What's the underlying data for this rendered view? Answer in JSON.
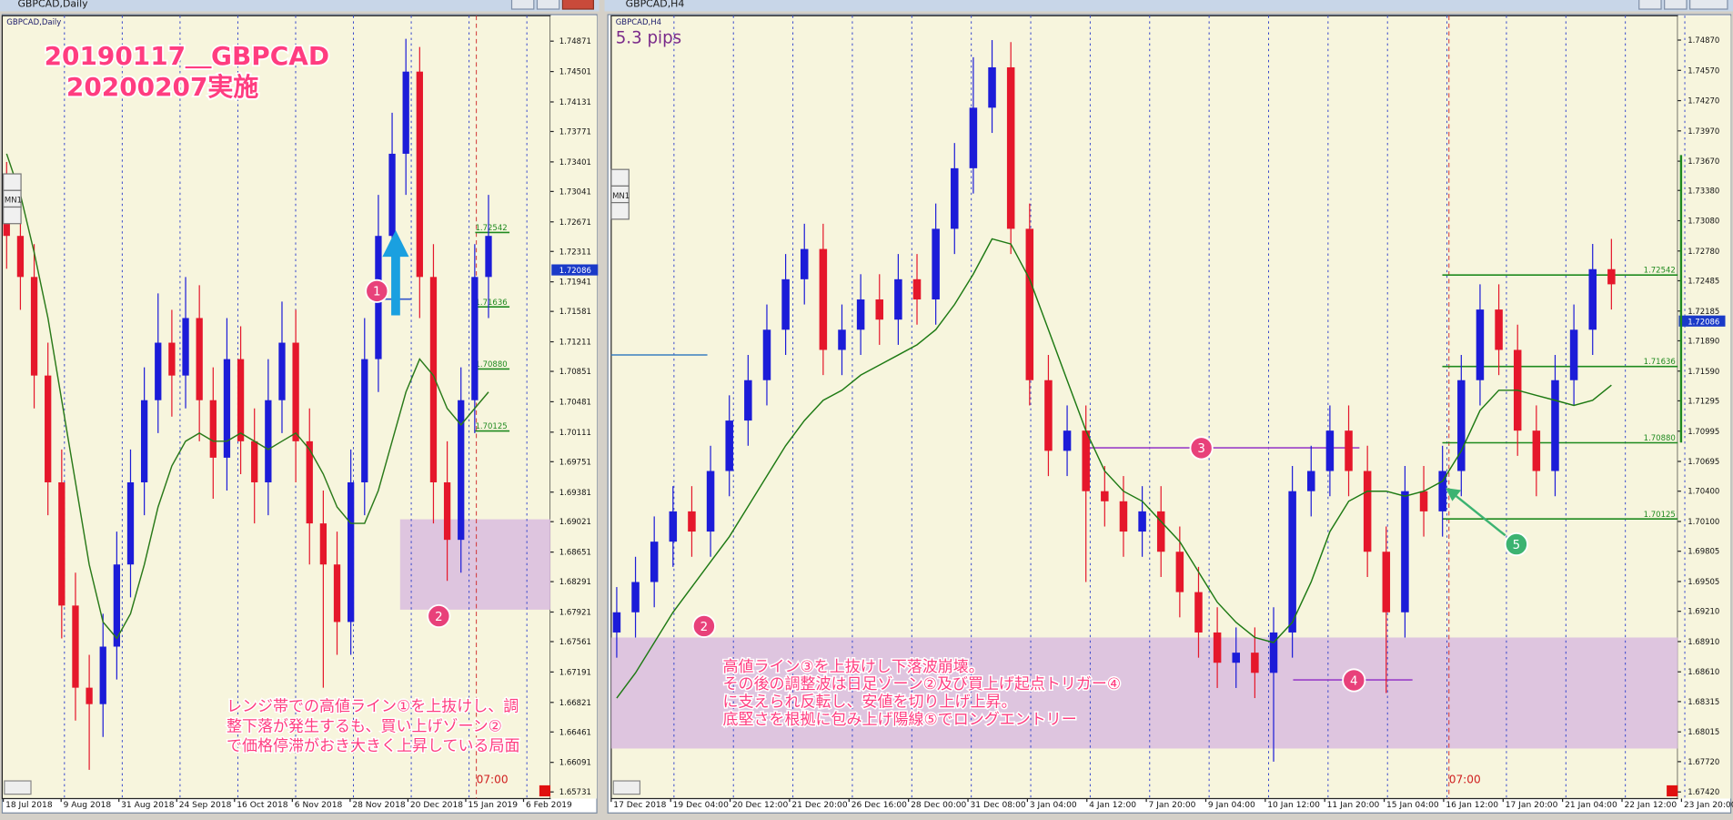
{
  "chart_data": [
    {
      "type": "candlestick",
      "window_title": "GBPCAD,Daily",
      "symbol_label": "GBPCAD,Daily",
      "title_lines": [
        "20190117＿GBPCAD",
        "20200207実施"
      ],
      "notes": [
        "レンジ帯での高値ライン①を上抜けし、調",
        "整下落が発生するも、買い上げゾーン②",
        "で価格停滞がおき大きく上昇している局面"
      ],
      "markers": [
        "1",
        "2"
      ],
      "period_button": "MN1",
      "time_label": "07:00",
      "ylim": [
        1.6565,
        1.7518
      ],
      "yticks": [
        1.74871,
        1.74501,
        1.74131,
        1.73771,
        1.73401,
        1.73041,
        1.72671,
        1.72311,
        1.71941,
        1.71581,
        1.71211,
        1.70851,
        1.70481,
        1.70111,
        1.69751,
        1.69381,
        1.69021,
        1.68651,
        1.68291,
        1.67921,
        1.67561,
        1.67191,
        1.66821,
        1.66461,
        1.66091,
        1.65731
      ],
      "xtick_labels": [
        "18 Jul 2018",
        "9 Aug 2018",
        "31 Aug 2018",
        "24 Sep 2018",
        "16 Oct 2018",
        "6 Nov 2018",
        "28 Nov 2018",
        "20 Dec 2018",
        "15 Jan 2019",
        "6 Feb 2019"
      ],
      "ohlc": {
        "open": [
          1.73,
          1.725,
          1.72,
          1.708,
          1.695,
          1.68,
          1.67,
          1.668,
          1.675,
          1.685,
          1.695,
          1.705,
          1.712,
          1.708,
          1.715,
          1.705,
          1.698,
          1.71,
          1.7,
          1.695,
          1.705,
          1.712,
          1.7,
          1.69,
          1.685,
          1.678,
          1.695,
          1.71,
          1.725,
          1.735,
          1.745,
          1.72,
          1.695,
          1.688,
          1.705,
          1.72
        ],
        "high": [
          1.734,
          1.729,
          1.724,
          1.712,
          1.699,
          1.684,
          1.674,
          1.679,
          1.689,
          1.699,
          1.709,
          1.718,
          1.716,
          1.72,
          1.719,
          1.709,
          1.715,
          1.714,
          1.704,
          1.71,
          1.717,
          1.716,
          1.704,
          1.694,
          1.689,
          1.699,
          1.715,
          1.73,
          1.74,
          1.749,
          1.748,
          1.724,
          1.7,
          1.709,
          1.724,
          1.73
        ],
        "low": [
          1.721,
          1.716,
          1.704,
          1.691,
          1.676,
          1.666,
          1.66,
          1.664,
          1.671,
          1.681,
          1.691,
          1.701,
          1.703,
          1.704,
          1.7,
          1.693,
          1.694,
          1.696,
          1.69,
          1.691,
          1.701,
          1.695,
          1.685,
          1.67,
          1.674,
          1.674,
          1.691,
          1.706,
          1.72,
          1.73,
          1.715,
          1.69,
          1.683,
          1.684,
          1.701,
          1.715
        ],
        "close": [
          1.725,
          1.72,
          1.708,
          1.695,
          1.68,
          1.67,
          1.668,
          1.675,
          1.685,
          1.695,
          1.705,
          1.712,
          1.708,
          1.715,
          1.705,
          1.698,
          1.71,
          1.7,
          1.695,
          1.705,
          1.712,
          1.7,
          1.69,
          1.685,
          1.678,
          1.695,
          1.71,
          1.725,
          1.735,
          1.745,
          1.72,
          1.695,
          1.688,
          1.705,
          1.72,
          1.725
        ]
      },
      "colors": {
        "up": "#1c1cd8",
        "down": "#e5172b"
      },
      "ma": {
        "color": "#2a7a1a",
        "values": [
          1.735,
          1.73,
          1.723,
          1.715,
          1.705,
          1.695,
          1.685,
          1.678,
          1.676,
          1.679,
          1.685,
          1.692,
          1.697,
          1.7,
          1.701,
          1.7,
          1.7,
          1.701,
          1.7,
          1.699,
          1.7,
          1.701,
          1.699,
          1.696,
          1.692,
          1.69,
          1.69,
          1.694,
          1.7,
          1.706,
          1.71,
          1.708,
          1.704,
          1.702,
          1.704,
          1.706
        ]
      },
      "last_price": 1.72086,
      "levels": [
        1.72542,
        1.71636,
        {
          "value": 1.7088,
          "label": "1.70880"
        },
        1.70125
      ],
      "level_color": "#1f8a1f",
      "zone": {
        "from": 1.6795,
        "to": 1.6905,
        "color": "#d9bcdf"
      },
      "h_lines": [
        {
          "value": 1.7173,
          "color": "#3355cc"
        }
      ]
    },
    {
      "type": "candlestick",
      "window_title": "GBPCAD,H4",
      "symbol_label": "GBPCAD,H4",
      "pips_label": "5.3 pips",
      "notes": [
        "高値ライン③を上抜けし下落波崩壊。",
        "その後の調整波は日足ゾーン②及び買上げ起点トリガー④",
        "に支えられ反転し、安値を切り上げ上昇。",
        "底堅さを根拠に包み上げ陽線⑤でロングエントリー"
      ],
      "markers": [
        "2",
        "3",
        "4",
        "5"
      ],
      "period_button": "MN1",
      "time_label": "07:00",
      "ylim": [
        1.67354,
        1.75111
      ],
      "yticks": [
        {
          "value": 1.7487,
          "label": "1.74870"
        },
        {
          "value": 1.7457,
          "label": "1.74570"
        },
        {
          "value": 1.7427,
          "label": "1.74270"
        },
        {
          "value": 1.7397,
          "label": "1.73970"
        },
        {
          "value": 1.7367,
          "label": "1.73670"
        },
        {
          "value": 1.7338,
          "label": "1.73380"
        },
        {
          "value": 1.7308,
          "label": "1.73080"
        },
        {
          "value": 1.7278,
          "label": "1.72780"
        },
        1.72485,
        1.72185,
        {
          "value": 1.7189,
          "label": "1.71890"
        },
        {
          "value": 1.7159,
          "label": "1.71590"
        },
        1.71295,
        1.70995,
        1.70695,
        {
          "value": 1.704,
          "label": "1.70400"
        },
        {
          "value": 1.701,
          "label": "1.70100"
        },
        1.69805,
        1.69505,
        {
          "value": 1.6921,
          "label": "1.69210"
        },
        {
          "value": 1.6891,
          "label": "1.68910"
        },
        {
          "value": 1.6861,
          "label": "1.68610"
        },
        1.68315,
        1.68015,
        {
          "value": 1.6772,
          "label": "1.67720"
        },
        {
          "value": 1.6742,
          "label": "1.67420"
        }
      ],
      "xtick_labels": [
        "17 Dec 2018",
        "19 Dec 04:00",
        "20 Dec 12:00",
        "21 Dec 20:00",
        "26 Dec 16:00",
        "28 Dec 00:00",
        "31 Dec 08:00",
        "3 Jan 04:00",
        "4 Jan 12:00",
        "7 Jan 20:00",
        "9 Jan 04:00",
        "10 Jan 12:00",
        "11 Jan 20:00",
        "15 Jan 04:00",
        "16 Jan 12:00",
        "17 Jan 20:00",
        "21 Jan 04:00",
        "22 Jan 12:00",
        "23 Jan 20:00"
      ],
      "ohlc": {
        "open": [
          1.69,
          1.692,
          1.695,
          1.699,
          1.702,
          1.7,
          1.706,
          1.711,
          1.715,
          1.72,
          1.725,
          1.728,
          1.718,
          1.72,
          1.723,
          1.721,
          1.725,
          1.723,
          1.73,
          1.736,
          1.742,
          1.746,
          1.73,
          1.715,
          1.708,
          1.71,
          1.704,
          1.703,
          1.7,
          1.702,
          1.698,
          1.694,
          1.69,
          1.687,
          1.688,
          1.686,
          1.69,
          1.704,
          1.706,
          1.71,
          1.706,
          1.698,
          1.692,
          1.704,
          1.702,
          1.706,
          1.715,
          1.722,
          1.718,
          1.71,
          1.706,
          1.715,
          1.72,
          1.726
        ],
        "high": [
          1.6945,
          1.6975,
          1.7015,
          1.7045,
          1.7045,
          1.7085,
          1.7135,
          1.7175,
          1.7225,
          1.7275,
          1.7305,
          1.7305,
          1.7225,
          1.7255,
          1.7255,
          1.7275,
          1.7275,
          1.7325,
          1.7385,
          1.747,
          1.7487,
          1.7485,
          1.7325,
          1.7175,
          1.7125,
          1.7125,
          1.7065,
          1.7055,
          1.7045,
          1.7045,
          1.7005,
          1.6965,
          1.6925,
          1.6905,
          1.6905,
          1.6925,
          1.7065,
          1.7085,
          1.7125,
          1.7125,
          1.7085,
          1.7005,
          1.7065,
          1.7065,
          1.7085,
          1.7175,
          1.7245,
          1.7245,
          1.7205,
          1.7125,
          1.7175,
          1.7225,
          1.7285,
          1.729
        ],
        "low": [
          1.6875,
          1.6895,
          1.6925,
          1.6965,
          1.6975,
          1.6975,
          1.7035,
          1.7085,
          1.7125,
          1.7175,
          1.7225,
          1.7155,
          1.7155,
          1.7175,
          1.7185,
          1.7185,
          1.7205,
          1.7205,
          1.7275,
          1.7335,
          1.7395,
          1.7275,
          1.7125,
          1.7055,
          1.7055,
          1.695,
          1.7005,
          1.6975,
          1.6975,
          1.6955,
          1.6915,
          1.6875,
          1.6845,
          1.6845,
          1.6835,
          1.6772,
          1.6875,
          1.7015,
          1.7035,
          1.7035,
          1.6955,
          1.684,
          1.6895,
          1.6995,
          1.6995,
          1.7035,
          1.7125,
          1.7155,
          1.7075,
          1.7035,
          1.7035,
          1.7125,
          1.7175,
          1.722
        ],
        "close": [
          1.692,
          1.695,
          1.699,
          1.702,
          1.7,
          1.706,
          1.711,
          1.715,
          1.72,
          1.725,
          1.728,
          1.718,
          1.72,
          1.723,
          1.721,
          1.725,
          1.723,
          1.73,
          1.736,
          1.742,
          1.746,
          1.73,
          1.715,
          1.708,
          1.71,
          1.704,
          1.703,
          1.7,
          1.702,
          1.698,
          1.694,
          1.69,
          1.687,
          1.688,
          1.686,
          1.69,
          1.704,
          1.706,
          1.71,
          1.706,
          1.698,
          1.692,
          1.704,
          1.702,
          1.706,
          1.715,
          1.722,
          1.718,
          1.71,
          1.706,
          1.715,
          1.72,
          1.726,
          1.7245
        ]
      },
      "colors": {
        "up": "#1c1cd8",
        "down": "#e5172b"
      },
      "ma": {
        "color": "#1e7a14",
        "values": [
          1.6835,
          1.686,
          1.689,
          1.692,
          1.6945,
          1.697,
          1.6995,
          1.7025,
          1.7055,
          1.7085,
          1.711,
          1.713,
          1.714,
          1.7155,
          1.7165,
          1.7175,
          1.7185,
          1.72,
          1.7225,
          1.7255,
          1.729,
          1.7285,
          1.725,
          1.72,
          1.715,
          1.71,
          1.706,
          1.704,
          1.703,
          1.701,
          1.699,
          1.696,
          1.693,
          1.691,
          1.6895,
          1.689,
          1.691,
          1.695,
          1.7,
          1.703,
          1.704,
          1.704,
          1.7035,
          1.704,
          1.705,
          1.708,
          1.712,
          1.714,
          1.714,
          1.7135,
          1.713,
          1.7125,
          1.713,
          1.7145
        ]
      },
      "last_price": 1.72086,
      "levels": [
        1.72542,
        1.71636,
        {
          "value": 1.7088,
          "label": "1.70880"
        },
        1.70125
      ],
      "level_color": "#1f8a1f",
      "zone": {
        "from": 1.6785,
        "to": 1.6895,
        "color": "#d9bcdf"
      },
      "h_lines": [
        {
          "value": 1.7175,
          "color": "#3a7fc0"
        },
        {
          "value": 1.7083,
          "color": "#9a3fc8"
        },
        {
          "value": 1.6853,
          "color": "#9a3fc8"
        }
      ]
    }
  ]
}
